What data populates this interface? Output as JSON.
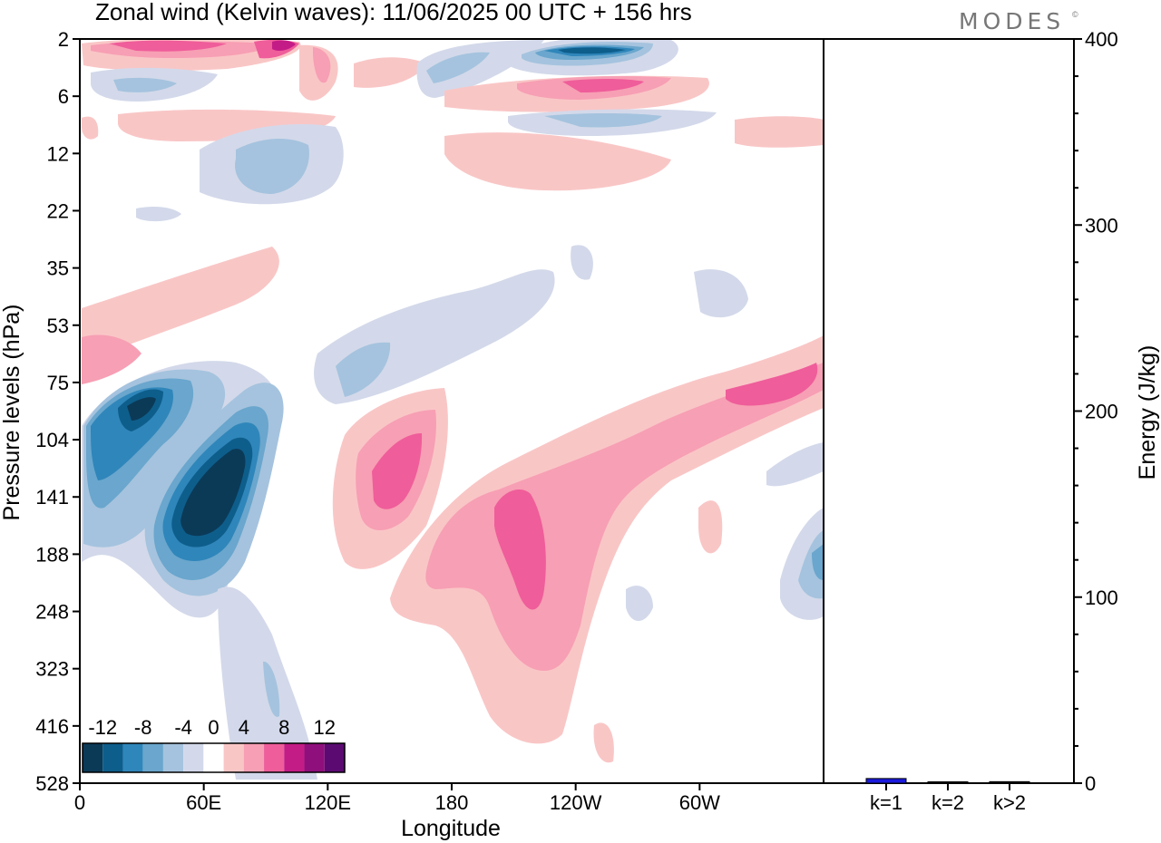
{
  "title": "Zonal wind (Kelvin waves):  11/06/2025  00 UTC  + 156 hrs",
  "logo": "MODES",
  "logo_mark": "©",
  "chart_data": [
    {
      "type": "heatmap",
      "variable": "Zonal wind (Kelvin waves)",
      "xlabel": "Longitude",
      "ylabel": "Pressure levels (hPa)",
      "x_ticks": [
        "0",
        "60E",
        "120E",
        "180",
        "120W",
        "60W"
      ],
      "y_ticks": [
        "2",
        "6",
        "12",
        "22",
        "35",
        "53",
        "75",
        "104",
        "141",
        "188",
        "248",
        "323",
        "416",
        "528"
      ],
      "yscale": "pressure-levels",
      "colorbar": {
        "labels": [
          "-12",
          "-8",
          "-4",
          "0",
          "4",
          "8",
          "12"
        ],
        "levels": [
          -14,
          -12,
          -10,
          -8,
          -6,
          -4,
          -2,
          2,
          4,
          6,
          8,
          10,
          12,
          14
        ],
        "colors": [
          "#0b3a57",
          "#0e5e8c",
          "#2f86ba",
          "#6aa6cd",
          "#a5c3de",
          "#d3d9ea",
          "#ffffff",
          "#f9c6c6",
          "#f79fb4",
          "#ef5d9a",
          "#c41c86",
          "#8f0f7c",
          "#5b0a72"
        ]
      },
      "features": [
        {
          "kind": "neg",
          "level": -14,
          "lon": 68,
          "p": 150
        },
        {
          "kind": "neg",
          "level": -12,
          "lon": 30,
          "p": 90
        },
        {
          "kind": "pos",
          "level": 6,
          "lon": 210,
          "p": 150
        },
        {
          "kind": "pos",
          "level": 6,
          "lon": 130,
          "p": 120
        },
        {
          "kind": "neg",
          "level": -10,
          "lon": 235,
          "p": 3
        }
      ]
    },
    {
      "type": "bar",
      "ylabel": "Energy (J/kg)",
      "categories": [
        "k=1",
        "k=2",
        "k>2"
      ],
      "values": [
        2.5,
        0.3,
        0.8
      ],
      "ylim": [
        0,
        400
      ],
      "y_ticks": [
        "0",
        "100",
        "200",
        "300",
        "400"
      ],
      "bar_colors": [
        "#1a1adc",
        "#000000",
        "#000000"
      ]
    }
  ]
}
